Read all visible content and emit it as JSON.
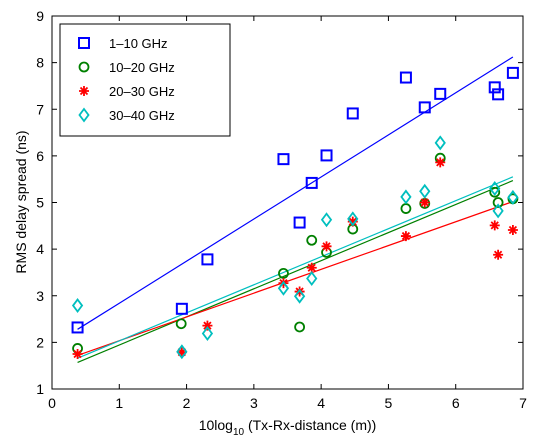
{
  "chart_data": {
    "type": "scatter",
    "xlabel_prefix": "10log",
    "xlabel_sub": "10",
    "xlabel_suffix": " (Tx-Rx-distance (m))",
    "ylabel": "RMS delay spread (ns)",
    "xlim": [
      0,
      7
    ],
    "ylim": [
      1,
      9
    ],
    "xticks": [
      0,
      1,
      2,
      3,
      4,
      5,
      6,
      7
    ],
    "yticks": [
      1,
      2,
      3,
      4,
      5,
      6,
      7,
      8,
      9
    ],
    "grid": false,
    "legend_position": "top-left",
    "series": [
      {
        "name": "1–10 GHz",
        "color": "#0000ff",
        "marker": "square",
        "points": [
          [
            0.38,
            2.32
          ],
          [
            1.93,
            2.72
          ],
          [
            2.31,
            3.78
          ],
          [
            3.44,
            5.93
          ],
          [
            3.68,
            4.57
          ],
          [
            3.86,
            5.42
          ],
          [
            4.08,
            6.01
          ],
          [
            4.47,
            6.91
          ],
          [
            5.26,
            7.68
          ],
          [
            5.54,
            7.04
          ],
          [
            5.77,
            7.33
          ],
          [
            6.58,
            7.47
          ],
          [
            6.63,
            7.32
          ],
          [
            6.85,
            7.78
          ]
        ],
        "fit": [
          [
            0.38,
            2.28
          ],
          [
            6.85,
            8.12
          ]
        ]
      },
      {
        "name": "10–20 GHz",
        "color": "#008000",
        "marker": "circle",
        "points": [
          [
            0.38,
            1.87
          ],
          [
            1.92,
            2.4
          ],
          [
            3.44,
            3.48
          ],
          [
            3.68,
            2.33
          ],
          [
            3.86,
            4.19
          ],
          [
            4.08,
            3.93
          ],
          [
            4.47,
            4.43
          ],
          [
            5.26,
            4.87
          ],
          [
            5.54,
            4.98
          ],
          [
            5.77,
            5.95
          ],
          [
            6.58,
            5.22
          ],
          [
            6.63,
            5.0
          ],
          [
            6.85,
            5.08
          ]
        ],
        "fit": [
          [
            0.38,
            1.57
          ],
          [
            6.85,
            5.47
          ]
        ]
      },
      {
        "name": "20–30 GHz",
        "color": "#ff0000",
        "marker": "star",
        "points": [
          [
            0.38,
            1.75
          ],
          [
            1.93,
            1.79
          ],
          [
            2.31,
            2.36
          ],
          [
            3.44,
            3.27
          ],
          [
            3.68,
            3.09
          ],
          [
            3.86,
            3.6
          ],
          [
            4.08,
            4.06
          ],
          [
            4.47,
            4.59
          ],
          [
            5.26,
            4.28
          ],
          [
            5.54,
            5.0
          ],
          [
            5.77,
            5.86
          ],
          [
            6.58,
            4.51
          ],
          [
            6.63,
            3.88
          ],
          [
            6.85,
            4.41
          ]
        ],
        "fit": [
          [
            0.38,
            1.72
          ],
          [
            6.85,
            5.02
          ]
        ]
      },
      {
        "name": "30–40 GHz",
        "color": "#00bfbf",
        "marker": "diamond",
        "points": [
          [
            0.38,
            2.79
          ],
          [
            1.93,
            1.8
          ],
          [
            2.31,
            2.19
          ],
          [
            3.44,
            3.16
          ],
          [
            3.68,
            2.99
          ],
          [
            3.86,
            3.37
          ],
          [
            4.08,
            4.63
          ],
          [
            4.47,
            4.65
          ],
          [
            5.26,
            5.12
          ],
          [
            5.54,
            5.24
          ],
          [
            5.77,
            6.28
          ],
          [
            6.58,
            5.3
          ],
          [
            6.63,
            4.82
          ],
          [
            6.85,
            5.11
          ]
        ],
        "fit": [
          [
            0.38,
            1.66
          ],
          [
            6.85,
            5.55
          ]
        ]
      }
    ]
  }
}
